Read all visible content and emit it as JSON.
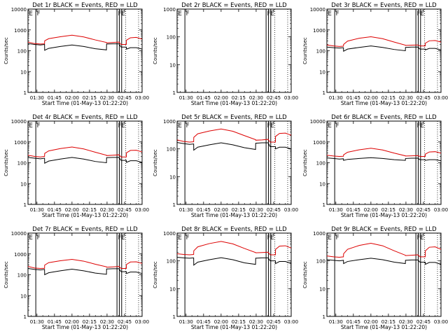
{
  "chart_data": {
    "type": "line",
    "xlabel": "Start Time (01-May-13 01:22:20)",
    "ylabel": "Counts/sec",
    "x_ticks": [
      "01:30",
      "01:45",
      "02:00",
      "02:15",
      "02:30",
      "02:45",
      "03:00"
    ],
    "x_tick_minutes": [
      90,
      105,
      120,
      135,
      150,
      165,
      180
    ],
    "x_range_minutes": [
      82.33,
      180
    ],
    "y_scale": "log",
    "grid": false,
    "colors": {
      "events": "#000000",
      "lld": "#dd0000"
    },
    "x_minutes": [
      82.33,
      88,
      93,
      96.5,
      96.6,
      100,
      110,
      120,
      130,
      140,
      149.5,
      149.6,
      155,
      160.2,
      162,
      166.5,
      166.6,
      170,
      175,
      180
    ],
    "panels": [
      {
        "title": "Det 1r BLACK = Events, RED = LLD",
        "ylim": [
          1,
          10000
        ],
        "y_ticks": [
          "1",
          "10",
          "100",
          "1000",
          "10000"
        ],
        "y_tick_values": [
          1,
          10,
          100,
          1000,
          10000
        ],
        "vlines": [
          {
            "minute": 89,
            "style": "solid"
          },
          {
            "minute": 158.5,
            "style": "solid"
          },
          {
            "minute": 160.5,
            "style": "solid"
          },
          {
            "minute": 162.5,
            "style": "solid"
          },
          {
            "minute": 166,
            "style": "dotted"
          },
          {
            "minute": 177,
            "style": "dotted"
          }
        ],
        "flags": [
          {
            "label": "E",
            "minute": 82.33
          },
          {
            "label": "F",
            "minute": 89
          },
          {
            "label": "FE",
            "minute": 158.5
          }
        ],
        "series": [
          {
            "role": "lld",
            "values": [
              260,
              220,
              210,
              215,
              300,
              380,
              470,
              560,
              460,
              330,
              250,
              240,
              250,
              260,
              200,
              200,
              320,
              420,
              440,
              360
            ]
          },
          {
            "role": "events",
            "values": [
              220,
              200,
              190,
              200,
              105,
              130,
              160,
              190,
              160,
              125,
              110,
              210,
              215,
              215,
              150,
              150,
              120,
              140,
              140,
              120
            ]
          }
        ]
      },
      {
        "title": "Det 2r BLACK = Events, RED = LLD",
        "ylim": [
          1,
          1000
        ],
        "y_ticks": [
          "1",
          "10",
          "100",
          "1000"
        ],
        "y_tick_values": [
          1,
          10,
          100,
          1000
        ],
        "vlines": [
          {
            "minute": 89,
            "style": "solid"
          },
          {
            "minute": 158.5,
            "style": "solid"
          },
          {
            "minute": 160.5,
            "style": "solid"
          },
          {
            "minute": 162.5,
            "style": "solid"
          },
          {
            "minute": 166,
            "style": "dotted"
          },
          {
            "minute": 177,
            "style": "dotted"
          }
        ],
        "flags": [
          {
            "label": "E",
            "minute": 82.33
          },
          {
            "label": "F",
            "minute": 89
          },
          {
            "label": "FE",
            "minute": 158.5
          }
        ],
        "series": []
      },
      {
        "title": "Det 3r BLACK = Events, RED = LLD",
        "ylim": [
          1,
          10000
        ],
        "y_ticks": [
          "1",
          "10",
          "100",
          "1000",
          "10000"
        ],
        "y_tick_values": [
          1,
          10,
          100,
          1000,
          10000
        ],
        "vlines": [
          {
            "minute": 89,
            "style": "solid"
          },
          {
            "minute": 158.5,
            "style": "solid"
          },
          {
            "minute": 160.5,
            "style": "solid"
          },
          {
            "minute": 162.5,
            "style": "solid"
          },
          {
            "minute": 166,
            "style": "dotted"
          },
          {
            "minute": 177,
            "style": "dotted"
          }
        ],
        "flags": [
          {
            "label": "E",
            "minute": 82.33
          },
          {
            "label": "F",
            "minute": 89
          },
          {
            "label": "FE",
            "minute": 158.5
          }
        ],
        "series": [
          {
            "role": "lld",
            "values": [
              190,
              170,
              160,
              165,
              200,
              290,
              400,
              470,
              380,
              260,
              185,
              180,
              185,
              190,
              170,
              170,
              230,
              300,
              310,
              260
            ]
          },
          {
            "role": "events",
            "values": [
              150,
              140,
              135,
              140,
              95,
              120,
              145,
              170,
              145,
              115,
              100,
              145,
              150,
              150,
              120,
              120,
              110,
              130,
              130,
              110
            ]
          }
        ]
      },
      {
        "title": "Det 4r BLACK = Events, RED = LLD",
        "ylim": [
          1,
          10000
        ],
        "y_ticks": [
          "1",
          "10",
          "100",
          "1000",
          "10000"
        ],
        "y_tick_values": [
          1,
          10,
          100,
          1000,
          10000
        ],
        "vlines": [
          {
            "minute": 89,
            "style": "solid"
          },
          {
            "minute": 158.5,
            "style": "solid"
          },
          {
            "minute": 160.5,
            "style": "solid"
          },
          {
            "minute": 162.5,
            "style": "solid"
          },
          {
            "minute": 166,
            "style": "dotted"
          },
          {
            "minute": 177,
            "style": "dotted"
          }
        ],
        "flags": [
          {
            "label": "E",
            "minute": 82.33
          },
          {
            "label": "F",
            "minute": 89
          },
          {
            "label": "FE",
            "minute": 158.5
          }
        ],
        "series": [
          {
            "role": "lld",
            "values": [
              230,
              200,
              190,
              200,
              280,
              370,
              480,
              570,
              460,
              320,
              230,
              220,
              230,
              240,
              190,
              190,
              300,
              390,
              400,
              330
            ]
          },
          {
            "role": "events",
            "values": [
              180,
              165,
              155,
              165,
              95,
              120,
              150,
              180,
              150,
              115,
              100,
              175,
              180,
              180,
              130,
              130,
              105,
              125,
              125,
              105
            ]
          }
        ]
      },
      {
        "title": "Det 5r BLACK = Events, RED = LLD",
        "ylim": [
          1,
          1000
        ],
        "y_ticks": [
          "1",
          "10",
          "100",
          "1000"
        ],
        "y_tick_values": [
          1,
          10,
          100,
          1000
        ],
        "vlines": [
          {
            "minute": 89,
            "style": "solid"
          },
          {
            "minute": 158.5,
            "style": "solid"
          },
          {
            "minute": 160.5,
            "style": "solid"
          },
          {
            "minute": 162.5,
            "style": "solid"
          },
          {
            "minute": 166,
            "style": "dotted"
          },
          {
            "minute": 177,
            "style": "dotted"
          }
        ],
        "flags": [
          {
            "label": "E",
            "minute": 82.33
          },
          {
            "label": "F",
            "minute": 89
          },
          {
            "label": "FE",
            "minute": 158.5
          }
        ],
        "series": [
          {
            "role": "lld",
            "values": [
              210,
              185,
              175,
              180,
              260,
              350,
              440,
              520,
              430,
              300,
              215,
              205,
              210,
              220,
              175,
              175,
              280,
              360,
              370,
              310
            ]
          },
          {
            "role": "events",
            "values": [
              170,
              155,
              145,
              150,
              90,
              115,
              140,
              165,
              140,
              110,
              95,
              160,
              165,
              165,
              120,
              120,
              100,
              115,
              115,
              100
            ]
          }
        ]
      },
      {
        "title": "Det 6r BLACK = Events, RED = LLD",
        "ylim": [
          1,
          10000
        ],
        "y_ticks": [
          "1",
          "10",
          "100",
          "1000",
          "10000"
        ],
        "y_tick_values": [
          1,
          10,
          100,
          1000,
          10000
        ],
        "vlines": [
          {
            "minute": 89,
            "style": "solid"
          },
          {
            "minute": 158.5,
            "style": "solid"
          },
          {
            "minute": 160.5,
            "style": "solid"
          },
          {
            "minute": 162.5,
            "style": "solid"
          },
          {
            "minute": 166,
            "style": "dotted"
          },
          {
            "minute": 177,
            "style": "dotted"
          }
        ],
        "flags": [
          {
            "label": "E",
            "minute": 82.33
          },
          {
            "label": "F",
            "minute": 89
          },
          {
            "label": "FE",
            "minute": 158.5
          }
        ],
        "series": [
          {
            "role": "lld",
            "values": [
              230,
              210,
              200,
              205,
              240,
              320,
              420,
              500,
              410,
              290,
              215,
              210,
              215,
              220,
              200,
              200,
              260,
              330,
              340,
              290
            ]
          },
          {
            "role": "events",
            "values": [
              170,
              160,
              150,
              155,
              130,
              145,
              160,
              175,
              160,
              140,
              130,
              160,
              165,
              165,
              140,
              140,
              130,
              140,
              140,
              125
            ]
          }
        ]
      },
      {
        "title": "Det 7r BLACK = Events, RED = LLD",
        "ylim": [
          1,
          10000
        ],
        "y_ticks": [
          "1",
          "10",
          "100",
          "1000",
          "10000"
        ],
        "y_tick_values": [
          1,
          10,
          100,
          1000,
          10000
        ],
        "vlines": [
          {
            "minute": 89,
            "style": "solid"
          },
          {
            "minute": 158.5,
            "style": "solid"
          },
          {
            "minute": 160.5,
            "style": "solid"
          },
          {
            "minute": 162.5,
            "style": "solid"
          },
          {
            "minute": 166,
            "style": "dotted"
          },
          {
            "minute": 177,
            "style": "dotted"
          }
        ],
        "flags": [
          {
            "label": "E",
            "minute": 82.33
          },
          {
            "label": "F",
            "minute": 89
          },
          {
            "label": "FE",
            "minute": 158.5
          }
        ],
        "series": [
          {
            "role": "lld",
            "values": [
              250,
              210,
              200,
              205,
              290,
              380,
              470,
              550,
              450,
              320,
              240,
              230,
              240,
              250,
              200,
              200,
              310,
              410,
              420,
              350
            ]
          },
          {
            "role": "events",
            "values": [
              200,
              180,
              170,
              180,
              100,
              125,
              155,
              185,
              155,
              120,
              105,
              190,
              195,
              195,
              140,
              140,
              115,
              135,
              135,
              115
            ]
          }
        ]
      },
      {
        "title": "Det 8r BLACK = Events, RED = LLD",
        "ylim": [
          1,
          1000
        ],
        "y_ticks": [
          "1",
          "10",
          "100",
          "1000"
        ],
        "y_tick_values": [
          1,
          10,
          100,
          1000
        ],
        "vlines": [
          {
            "minute": 89,
            "style": "solid"
          },
          {
            "minute": 158.5,
            "style": "solid"
          },
          {
            "minute": 160.5,
            "style": "solid"
          },
          {
            "minute": 162.5,
            "style": "solid"
          },
          {
            "minute": 166,
            "style": "dotted"
          },
          {
            "minute": 177,
            "style": "dotted"
          }
        ],
        "flags": [
          {
            "label": "E",
            "minute": 82.33
          },
          {
            "label": "F",
            "minute": 89
          },
          {
            "label": "FE",
            "minute": 158.5
          }
        ],
        "series": [
          {
            "role": "lld",
            "values": [
              180,
              170,
              165,
              170,
              230,
              320,
              420,
              500,
              410,
              280,
              200,
              195,
              200,
              205,
              165,
              165,
              260,
              340,
              350,
              290
            ]
          },
          {
            "role": "events",
            "values": [
              135,
              128,
              125,
              128,
              70,
              90,
              110,
              130,
              110,
              85,
              75,
              125,
              128,
              128,
              100,
              100,
              80,
              95,
              95,
              80
            ]
          }
        ]
      },
      {
        "title": "Det 9r BLACK = Events, RED = LLD",
        "ylim": [
          1,
          1000
        ],
        "y_ticks": [
          "1",
          "10",
          "100",
          "1000"
        ],
        "y_tick_values": [
          1,
          10,
          100,
          1000
        ],
        "vlines": [
          {
            "minute": 89,
            "style": "solid"
          },
          {
            "minute": 158.5,
            "style": "solid"
          },
          {
            "minute": 160.5,
            "style": "solid"
          },
          {
            "minute": 162.5,
            "style": "solid"
          },
          {
            "minute": 166,
            "style": "dotted"
          },
          {
            "minute": 177,
            "style": "dotted"
          }
        ],
        "flags": [
          {
            "label": "E",
            "minute": 82.33
          },
          {
            "label": "F",
            "minute": 89
          },
          {
            "label": "FE",
            "minute": 158.5
          }
        ],
        "series": [
          {
            "role": "lld",
            "values": [
              150,
              140,
              135,
              140,
              180,
              260,
              360,
              430,
              350,
              230,
              160,
              155,
              160,
              165,
              140,
              140,
              230,
              310,
              320,
              260
            ]
          },
          {
            "role": "events",
            "values": [
              110,
              105,
              100,
              105,
              80,
              95,
              110,
              125,
              110,
              90,
              80,
              105,
              108,
              108,
              90,
              90,
              75,
              88,
              88,
              75
            ]
          }
        ]
      }
    ]
  }
}
